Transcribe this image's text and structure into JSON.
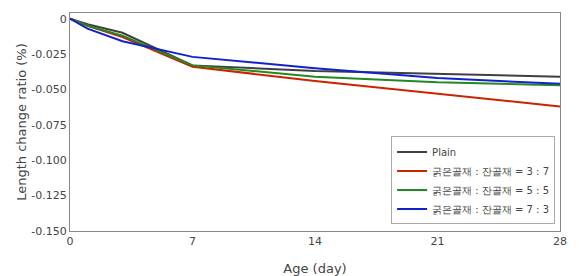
{
  "chart_data": {
    "type": "line",
    "xlabel": "Age (day)",
    "ylabel": "Length change ratio (%)",
    "x": [
      0,
      1,
      3,
      7,
      14,
      21,
      28
    ],
    "series": [
      {
        "name": "Plain",
        "color": "#404040",
        "values": [
          0.0,
          -0.004,
          -0.01,
          -0.033,
          -0.037,
          -0.039,
          -0.041
        ]
      },
      {
        "name": "굵은골재 : 잔골재 = 3 : 7",
        "color": "#cc2200",
        "values": [
          0.0,
          -0.005,
          -0.013,
          -0.034,
          -0.044,
          -0.053,
          -0.062
        ]
      },
      {
        "name": "굵은골재 : 잔골재 = 5 : 5",
        "color": "#228822",
        "values": [
          0.0,
          -0.005,
          -0.012,
          -0.033,
          -0.041,
          -0.045,
          -0.047
        ]
      },
      {
        "name": "굵은골재 : 잔골재 = 7 : 3",
        "color": "#1122cc",
        "values": [
          0.0,
          -0.007,
          -0.016,
          -0.027,
          -0.035,
          -0.042,
          -0.046
        ]
      }
    ],
    "xlim": [
      0,
      28
    ],
    "ylim": [
      -0.15,
      0.004
    ],
    "xticks": [
      0,
      7,
      14,
      21,
      28
    ],
    "yticks": [
      {
        "value": 0.0,
        "label": "0"
      },
      -0.025,
      {
        "value": -0.05,
        "label": "-0.050"
      },
      -0.075,
      {
        "value": -0.1,
        "label": "-0.100"
      },
      -0.125,
      {
        "value": -0.15,
        "label": "-0.150"
      }
    ],
    "grid": false,
    "legend": "lower right"
  }
}
